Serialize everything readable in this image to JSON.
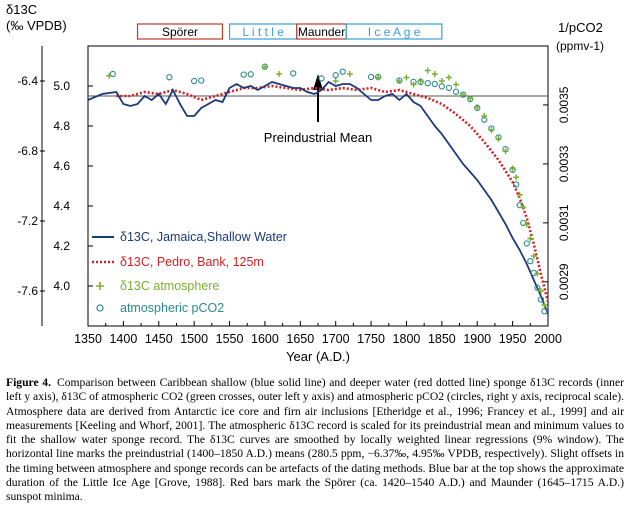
{
  "chart_data": {
    "type": "line",
    "ylabel_left_outer": [
      "δ13C",
      "(‰ VPDB)"
    ],
    "ylabel_right": [
      "1/pCO2",
      "(ppmv-1)"
    ],
    "xlabel": "Year (A.D.)",
    "xlim": [
      1350,
      2000
    ],
    "xticks": [
      "1350",
      "1400",
      "1450",
      "1500",
      "1550",
      "1600",
      "1650",
      "1700",
      "1750",
      "1800",
      "1850",
      "1900",
      "1950",
      "2000"
    ],
    "ylim_inner": [
      3.8,
      5.2
    ],
    "yticks_inner": [
      "4.0",
      "4.2",
      "4.4",
      "4.6",
      "4.8",
      "5.0"
    ],
    "ylim_outer": [
      -7.8,
      -6.2
    ],
    "yticks_outer": [
      "-7.6",
      "-7.2",
      "-6.8",
      "-6.4"
    ],
    "ylim_right": [
      0.00275,
      0.0037
    ],
    "yticks_right": [
      "0.0029",
      "0.0031",
      "0.0033",
      "0.0035"
    ],
    "baseline_inner": 4.95,
    "annotation": "Preindustrial Mean",
    "annotation_x": 1675,
    "periods": [
      {
        "name": "Spörer",
        "start": 1420,
        "end": 1540,
        "color": "#c0392b"
      },
      {
        "name": "L i t t l e",
        "start": 1550,
        "end": 1645,
        "color": "#3aa0d0"
      },
      {
        "name": "Maunder",
        "start": 1645,
        "end": 1715,
        "color": "#c0392b"
      },
      {
        "name": "I c e   A g e",
        "start": 1715,
        "end": 1850,
        "color": "#3aa0d0"
      }
    ],
    "legend": [
      {
        "name": "δ13C, Jamaica,Shallow Water",
        "color": "#1a3a7a",
        "style": "solid"
      },
      {
        "name": "δ13C, Pedro, Bank, 125m",
        "color": "#d42020",
        "style": "dotted"
      },
      {
        "name": "δ13C atmosphere",
        "color": "#7ab030",
        "style": "cross"
      },
      {
        "name": "atmospheric pCO2",
        "color": "#2a8a8a",
        "style": "circle"
      }
    ],
    "series": [
      {
        "name": "δ13C, Jamaica,Shallow Water",
        "axis": "inner",
        "x": [
          1350,
          1370,
          1390,
          1400,
          1410,
          1420,
          1430,
          1440,
          1450,
          1460,
          1470,
          1480,
          1490,
          1500,
          1510,
          1520,
          1530,
          1540,
          1550,
          1560,
          1570,
          1580,
          1590,
          1600,
          1610,
          1620,
          1630,
          1640,
          1650,
          1660,
          1670,
          1680,
          1690,
          1700,
          1710,
          1720,
          1730,
          1740,
          1750,
          1760,
          1770,
          1780,
          1790,
          1800,
          1810,
          1820,
          1830,
          1840,
          1850,
          1860,
          1870,
          1880,
          1890,
          1900,
          1910,
          1920,
          1930,
          1940,
          1950,
          1960,
          1970,
          1980,
          1990,
          2000
        ],
        "y": [
          4.93,
          4.96,
          4.97,
          4.91,
          4.9,
          4.91,
          4.95,
          4.93,
          4.96,
          4.91,
          4.98,
          4.91,
          4.85,
          4.85,
          4.89,
          4.91,
          4.93,
          4.92,
          4.99,
          5.01,
          4.99,
          5.0,
          4.98,
          5.0,
          5.02,
          5.01,
          5.0,
          4.99,
          4.99,
          4.97,
          4.96,
          4.98,
          5.02,
          5.0,
          5.01,
          5.01,
          4.99,
          4.96,
          4.93,
          4.93,
          4.95,
          4.96,
          4.93,
          4.96,
          4.92,
          4.9,
          4.85,
          4.8,
          4.76,
          4.71,
          4.66,
          4.61,
          4.57,
          4.53,
          4.48,
          4.43,
          4.37,
          4.31,
          4.24,
          4.18,
          4.11,
          4.03,
          3.95,
          3.86
        ]
      },
      {
        "name": "δ13C, Pedro, Bank, 125m",
        "axis": "inner",
        "x": [
          1390,
          1410,
          1430,
          1450,
          1470,
          1490,
          1510,
          1530,
          1550,
          1570,
          1590,
          1610,
          1630,
          1650,
          1670,
          1690,
          1710,
          1730,
          1750,
          1770,
          1790,
          1810,
          1830,
          1850,
          1870,
          1890,
          1910,
          1930,
          1950,
          1960,
          1970,
          1980,
          1990,
          2000
        ],
        "y": [
          4.95,
          4.95,
          4.97,
          4.96,
          4.98,
          4.96,
          4.93,
          4.95,
          4.97,
          4.99,
          4.99,
          5.0,
          4.99,
          4.98,
          4.99,
          4.98,
          4.99,
          4.98,
          4.99,
          4.97,
          4.98,
          4.96,
          4.94,
          4.91,
          4.86,
          4.8,
          4.72,
          4.63,
          4.52,
          4.44,
          4.34,
          4.21,
          4.06,
          3.92
        ]
      },
      {
        "name": "δ13C atmosphere",
        "axis": "outer",
        "x": [
          1380,
          1600,
          1620,
          1700,
          1720,
          1760,
          1790,
          1800,
          1810,
          1820,
          1830,
          1840,
          1850,
          1860,
          1870,
          1880,
          1890,
          1900,
          1910,
          1920,
          1930,
          1940,
          1950,
          1955,
          1960,
          1965,
          1970,
          1975,
          1980,
          1985,
          1990,
          1995
        ],
        "y": [
          -6.37,
          -6.32,
          -6.36,
          -6.4,
          -6.36,
          -6.38,
          -6.4,
          -6.38,
          -6.42,
          -6.4,
          -6.34,
          -6.36,
          -6.4,
          -6.38,
          -6.42,
          -6.48,
          -6.5,
          -6.55,
          -6.6,
          -6.68,
          -6.73,
          -6.8,
          -6.9,
          -6.95,
          -7.05,
          -7.12,
          -7.22,
          -7.3,
          -7.4,
          -7.5,
          -7.6,
          -7.68
        ]
      },
      {
        "name": "atmospheric pCO2",
        "axis": "right",
        "x": [
          1385,
          1465,
          1500,
          1510,
          1570,
          1580,
          1600,
          1640,
          1680,
          1700,
          1710,
          1750,
          1760,
          1790,
          1810,
          1820,
          1830,
          1840,
          1850,
          1860,
          1870,
          1880,
          1890,
          1900,
          1910,
          1920,
          1930,
          1940,
          1950,
          1955,
          1960,
          1965,
          1970,
          1975,
          1980,
          1985,
          1990,
          1995
        ],
        "y": [
          0.003605,
          0.003594,
          0.003581,
          0.003583,
          0.003603,
          0.003604,
          0.00363,
          0.003607,
          0.00359,
          0.003601,
          0.003613,
          0.003595,
          0.003595,
          0.003583,
          0.003578,
          0.003578,
          0.003574,
          0.003571,
          0.003563,
          0.003558,
          0.003545,
          0.003535,
          0.00352,
          0.00349,
          0.00345,
          0.00342,
          0.00339,
          0.00335,
          0.00328,
          0.00323,
          0.00316,
          0.0031,
          0.00303,
          0.00297,
          0.00293,
          0.00288,
          0.00284,
          0.0028
        ]
      }
    ]
  },
  "caption": {
    "label": "Figure 4.",
    "text": "Comparison between Caribbean shallow (blue solid line) and deeper water (red dotted line) sponge δ13C records (inner left y axis), δ13C of atmospheric CO2 (green crosses, outer left y axis) and atmospheric pCO2 (circles, right y axis, reciprocal scale). Atmosphere data are derived from Antarctic ice core and firn air inclusions [Etheridge et al., 1996; Francey et al., 1999] and air measurements [Keeling and Whorf, 2001]. The atmospheric δ13C record is scaled for its preindustrial mean and minimum values to fit the shallow water sponge record. The δ13C curves are smoothed by locally weighted linear regressions (9% window). The horizontal line marks the preindustrial (1400–1850 A.D.) means (280.5 ppm, −6.37‰, 4.95‰ VPDB, respectively). Slight offsets in the timing between atmosphere and sponge records can be artefacts of the dating methods. Blue bar at the top shows the approximate duration of the Little Ice Age [Grove, 1988]. Red bars mark the Spörer (ca. 1420–1540 A.D.) and Maunder (1645–1715 A.D.) sunspot minima."
  }
}
